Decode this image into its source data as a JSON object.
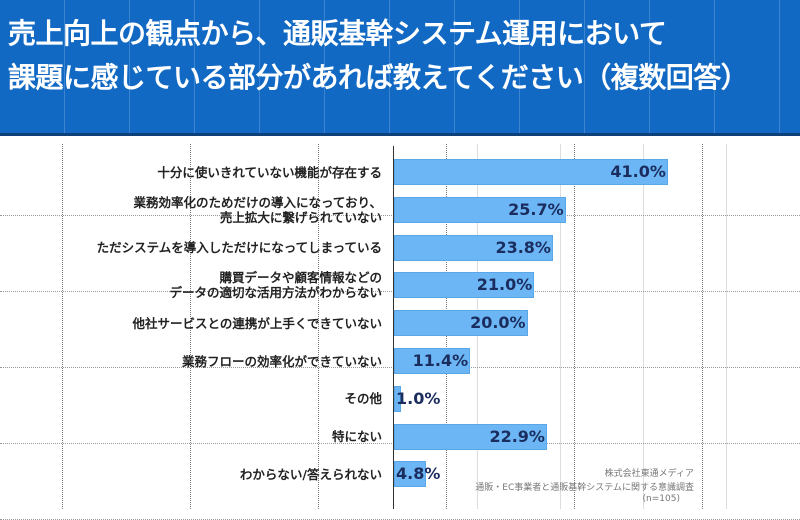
{
  "chart_data": {
    "type": "bar",
    "orientation": "horizontal",
    "title_lines": [
      "売上向上の観点から、通販基幹システム運用において",
      "課題に感じている部分があれば教えてください（複数回答）"
    ],
    "categories": [
      [
        "十分に使いきれていない機能が存在する"
      ],
      [
        "業務効率化のためだけの導入になっており、",
        "売上拡大に繋げられていない"
      ],
      [
        "ただシステムを導入しただけになってしまっている"
      ],
      [
        "購買データや顧客情報などの",
        "データの適切な活用方法がわからない"
      ],
      [
        "他社サービスとの連携が上手くできていない"
      ],
      [
        "業務フローの効率化ができていない"
      ],
      [
        "その他"
      ],
      [
        "特にない"
      ],
      [
        "わからない/答えられない"
      ]
    ],
    "values": [
      41.0,
      25.7,
      23.8,
      21.0,
      20.0,
      11.4,
      1.0,
      22.9,
      4.8
    ],
    "value_labels": [
      "41.0%",
      "25.7%",
      "23.8%",
      "21.0%",
      "20.0%",
      "11.4%",
      "1.0%",
      "22.9%",
      "4.8%"
    ],
    "unit": "%",
    "xlim": [
      0,
      60
    ],
    "bar_color": "#6cb6f5",
    "header_color": "#1169c4",
    "source": [
      "株式会社東通メディア",
      "通販・EC事業者と通販基幹システムに関する意識調査",
      "(n=105)"
    ]
  }
}
